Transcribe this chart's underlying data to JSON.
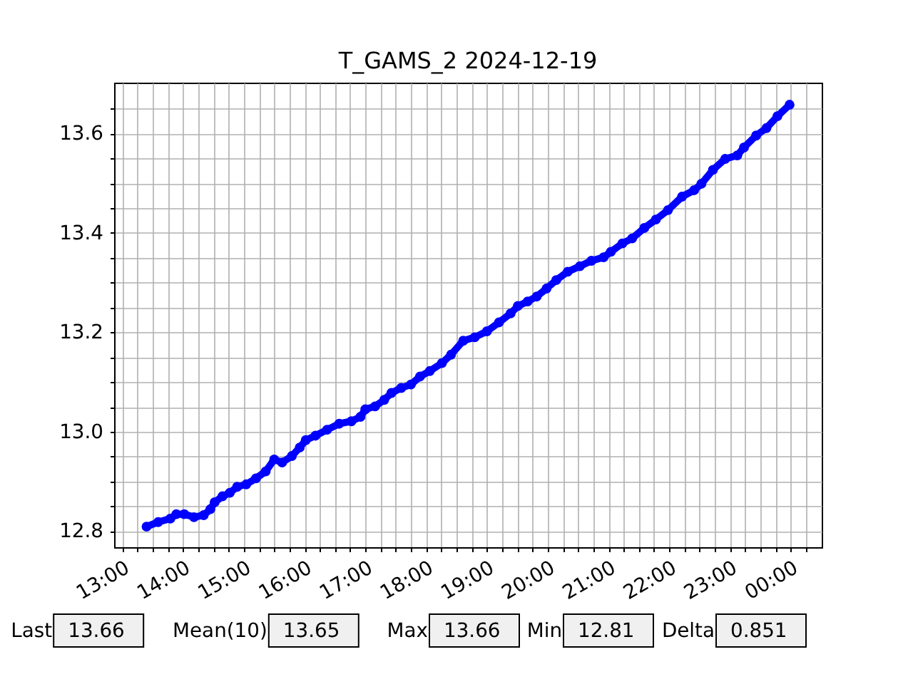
{
  "chart_data": {
    "type": "line",
    "title": "T_GAMS_2 2024-12-19",
    "x": [
      13.4,
      13.59,
      13.79,
      13.89,
      14.02,
      14.18,
      14.34,
      14.45,
      14.52,
      14.65,
      14.77,
      14.89,
      15.04,
      15.2,
      15.36,
      15.5,
      15.63,
      15.79,
      15.92,
      16.02,
      16.18,
      16.37,
      16.57,
      16.77,
      16.92,
      17.0,
      17.16,
      17.31,
      17.43,
      17.59,
      17.75,
      17.9,
      18.06,
      18.26,
      18.41,
      18.61,
      18.8,
      19.0,
      19.2,
      19.39,
      19.51,
      19.67,
      19.82,
      19.98,
      20.14,
      20.33,
      20.53,
      20.72,
      20.92,
      21.04,
      21.23,
      21.39,
      21.59,
      21.78,
      21.98,
      22.21,
      22.41,
      22.53,
      22.72,
      22.92,
      23.12,
      23.23,
      23.43,
      23.6,
      23.78,
      23.98
    ],
    "series": [
      {
        "color": "#0000ff",
        "values": [
          12.809,
          12.818,
          12.825,
          12.834,
          12.834,
          12.828,
          12.832,
          12.844,
          12.858,
          12.87,
          12.877,
          12.889,
          12.894,
          12.906,
          12.92,
          12.944,
          12.938,
          12.951,
          12.968,
          12.983,
          12.992,
          13.004,
          13.016,
          13.021,
          13.03,
          13.045,
          13.051,
          13.064,
          13.078,
          13.088,
          13.095,
          13.111,
          13.122,
          13.138,
          13.155,
          13.183,
          13.19,
          13.202,
          13.22,
          13.238,
          13.253,
          13.262,
          13.272,
          13.288,
          13.305,
          13.322,
          13.333,
          13.344,
          13.351,
          13.362,
          13.379,
          13.389,
          13.41,
          13.427,
          13.446,
          13.473,
          13.486,
          13.499,
          13.527,
          13.549,
          13.556,
          13.572,
          13.596,
          13.611,
          13.635,
          13.658
        ]
      }
    ],
    "xlim": [
      12.866,
      24.509
    ],
    "ylim": [
      12.7675,
      13.7025
    ],
    "xticks": [
      {
        "value": 13,
        "label": "13:00"
      },
      {
        "value": 13.25,
        "label": null
      },
      {
        "value": 13.5,
        "label": null
      },
      {
        "value": 13.75,
        "label": null
      },
      {
        "value": 14,
        "label": "14:00"
      },
      {
        "value": 14.25,
        "label": null
      },
      {
        "value": 14.5,
        "label": null
      },
      {
        "value": 14.75,
        "label": null
      },
      {
        "value": 15,
        "label": "15:00"
      },
      {
        "value": 15.25,
        "label": null
      },
      {
        "value": 15.5,
        "label": null
      },
      {
        "value": 15.75,
        "label": null
      },
      {
        "value": 16,
        "label": "16:00"
      },
      {
        "value": 16.25,
        "label": null
      },
      {
        "value": 16.5,
        "label": null
      },
      {
        "value": 16.75,
        "label": null
      },
      {
        "value": 17,
        "label": "17:00"
      },
      {
        "value": 17.25,
        "label": null
      },
      {
        "value": 17.5,
        "label": null
      },
      {
        "value": 17.75,
        "label": null
      },
      {
        "value": 18,
        "label": "18:00"
      },
      {
        "value": 18.25,
        "label": null
      },
      {
        "value": 18.5,
        "label": null
      },
      {
        "value": 18.75,
        "label": null
      },
      {
        "value": 19,
        "label": "19:00"
      },
      {
        "value": 19.25,
        "label": null
      },
      {
        "value": 19.5,
        "label": null
      },
      {
        "value": 19.75,
        "label": null
      },
      {
        "value": 20,
        "label": "20:00"
      },
      {
        "value": 20.25,
        "label": null
      },
      {
        "value": 20.5,
        "label": null
      },
      {
        "value": 20.75,
        "label": null
      },
      {
        "value": 21,
        "label": "21:00"
      },
      {
        "value": 21.25,
        "label": null
      },
      {
        "value": 21.5,
        "label": null
      },
      {
        "value": 21.75,
        "label": null
      },
      {
        "value": 22,
        "label": "22:00"
      },
      {
        "value": 22.25,
        "label": null
      },
      {
        "value": 22.5,
        "label": null
      },
      {
        "value": 22.75,
        "label": null
      },
      {
        "value": 23,
        "label": "23:00"
      },
      {
        "value": 23.25,
        "label": null
      },
      {
        "value": 23.5,
        "label": null
      },
      {
        "value": 23.75,
        "label": null
      },
      {
        "value": 24,
        "label": "00:00"
      },
      {
        "value": 24.25,
        "label": null
      }
    ],
    "yticks": [
      12.8,
      {
        "value": 12.85,
        "label": null
      },
      {
        "value": 12.9,
        "label": null
      },
      {
        "value": 12.95,
        "label": null
      },
      {
        "value": 13,
        "label": "13.0"
      },
      {
        "value": 13.05,
        "label": null
      },
      {
        "value": 13.1,
        "label": null
      },
      {
        "value": 13.15,
        "label": null
      },
      13.2,
      {
        "value": 13.25,
        "label": null
      },
      {
        "value": 13.3,
        "label": null
      },
      {
        "value": 13.35,
        "label": null
      },
      13.4,
      {
        "value": 13.45,
        "label": null
      },
      {
        "value": 13.5,
        "label": null
      },
      {
        "value": 13.55,
        "label": null
      },
      13.6,
      {
        "value": 13.65,
        "label": null
      }
    ],
    "grid": true,
    "marker": "circle",
    "line_style": "solid",
    "annotations": [
      "Last",
      "13.66",
      "Mean(10)",
      "13.65",
      "Max",
      "13.66",
      "Min",
      "12.81",
      "Delta",
      "0.851"
    ]
  }
}
